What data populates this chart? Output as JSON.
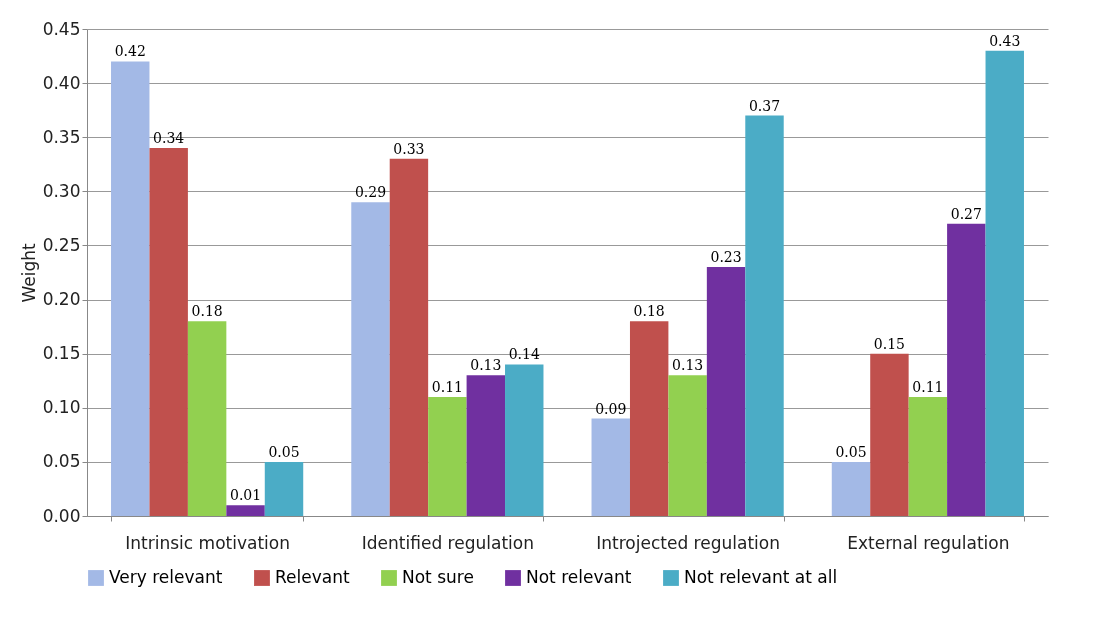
{
  "chart_data": {
    "type": "bar",
    "ylabel": "Weight",
    "categories": [
      "Intrinsic motivation",
      "Identified regulation",
      "Introjected regulation",
      "External regulation"
    ],
    "series": [
      {
        "name": "Very relevant",
        "color": "#a3b9e6",
        "values": [
          0.42,
          0.29,
          0.09,
          0.05
        ]
      },
      {
        "name": "Relevant",
        "color": "#c0504d",
        "values": [
          0.34,
          0.33,
          0.18,
          0.15
        ]
      },
      {
        "name": "Not sure",
        "color": "#92d050",
        "values": [
          0.18,
          0.11,
          0.13,
          0.11
        ]
      },
      {
        "name": "Not relevant",
        "color": "#7030a0",
        "values": [
          0.01,
          0.13,
          0.23,
          0.27
        ]
      },
      {
        "name": "Not relevant at all",
        "color": "#4bacc6",
        "values": [
          0.05,
          0.14,
          0.37,
          0.43
        ]
      }
    ],
    "ylim": [
      0,
      0.45
    ],
    "yticks": [
      {
        "value": 0,
        "label": "0.00"
      },
      {
        "value": 0.05,
        "label": "0.05"
      },
      {
        "value": 0.1,
        "label": "0.10"
      },
      {
        "value": 0.15,
        "label": "0.15"
      },
      {
        "value": 0.2,
        "label": "0.20"
      },
      {
        "value": 0.25,
        "label": "0.25"
      },
      {
        "value": 0.3,
        "label": "0.30"
      },
      {
        "value": 0.35,
        "label": "0.35"
      },
      {
        "value": 0.4,
        "label": "0.40"
      },
      {
        "value": 0.45,
        "label": "0.45"
      }
    ],
    "grid": "y",
    "legend": "bottom",
    "data_labels": true
  }
}
